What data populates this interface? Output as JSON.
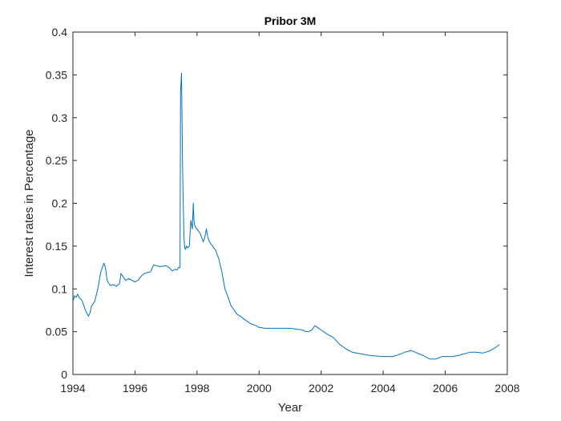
{
  "chart_data": {
    "type": "line",
    "title": "Pribor 3M",
    "xlabel": "Year",
    "ylabel": "Interest rates in Percentage",
    "xlim": [
      1994,
      2008
    ],
    "ylim": [
      0,
      0.4
    ],
    "x_ticks": [
      "1994",
      "1996",
      "1998",
      "2000",
      "2002",
      "2004",
      "2006",
      "2008"
    ],
    "y_ticks": [
      "0",
      "0.05",
      "0.1",
      "0.15",
      "0.2",
      "0.25",
      "0.3",
      "0.35",
      "0.4"
    ],
    "grid": false,
    "legend": "none",
    "line_color": "#0072BD",
    "series": [
      {
        "x": [
          1994.0,
          1994.05,
          1994.1,
          1994.15,
          1994.2,
          1994.3,
          1994.4,
          1994.5,
          1994.55,
          1994.6,
          1994.7,
          1994.8,
          1994.9,
          1995.0,
          1995.05,
          1995.1,
          1995.2,
          1995.3,
          1995.4,
          1995.5,
          1995.55,
          1995.6,
          1995.7,
          1995.8,
          1996.0,
          1996.1,
          1996.2,
          1996.3,
          1996.5,
          1996.6,
          1996.8,
          1997.0,
          1997.1,
          1997.2,
          1997.3,
          1997.35,
          1997.4,
          1997.45,
          1997.47,
          1997.5,
          1997.53,
          1997.55,
          1997.58,
          1997.6,
          1997.63,
          1997.66,
          1997.7,
          1997.75,
          1997.8,
          1997.85,
          1997.88,
          1997.9,
          1997.92,
          1997.95,
          1998.0,
          1998.1,
          1998.2,
          1998.25,
          1998.3,
          1998.35,
          1998.4,
          1998.5,
          1998.6,
          1998.7,
          1998.8,
          1998.9,
          1999.0,
          1999.1,
          1999.2,
          1999.3,
          1999.4,
          1999.5,
          1999.7,
          1999.9,
          2000.0,
          2000.2,
          2000.5,
          2000.8,
          2001.0,
          2001.2,
          2001.4,
          2001.5,
          2001.6,
          2001.7,
          2001.8,
          2002.0,
          2002.2,
          2002.4,
          2002.6,
          2002.8,
          2003.0,
          2003.3,
          2003.6,
          2004.0,
          2004.3,
          2004.5,
          2004.7,
          2004.9,
          2005.1,
          2005.3,
          2005.5,
          2005.7,
          2005.9,
          2006.0,
          2006.2,
          2006.4,
          2006.6,
          2006.8,
          2007.0,
          2007.2,
          2007.4,
          2007.6,
          2007.75
        ],
        "y": [
          0.085,
          0.092,
          0.09,
          0.094,
          0.09,
          0.086,
          0.075,
          0.068,
          0.072,
          0.08,
          0.085,
          0.1,
          0.12,
          0.13,
          0.125,
          0.11,
          0.104,
          0.105,
          0.103,
          0.106,
          0.118,
          0.115,
          0.11,
          0.112,
          0.108,
          0.11,
          0.115,
          0.118,
          0.12,
          0.128,
          0.126,
          0.127,
          0.125,
          0.121,
          0.123,
          0.122,
          0.125,
          0.125,
          0.33,
          0.352,
          0.25,
          0.21,
          0.16,
          0.148,
          0.146,
          0.15,
          0.148,
          0.15,
          0.18,
          0.17,
          0.2,
          0.18,
          0.175,
          0.172,
          0.17,
          0.165,
          0.155,
          0.16,
          0.17,
          0.16,
          0.155,
          0.15,
          0.145,
          0.135,
          0.12,
          0.1,
          0.09,
          0.08,
          0.075,
          0.07,
          0.068,
          0.065,
          0.06,
          0.057,
          0.055,
          0.054,
          0.054,
          0.054,
          0.054,
          0.053,
          0.052,
          0.05,
          0.05,
          0.052,
          0.057,
          0.052,
          0.047,
          0.043,
          0.035,
          0.03,
          0.026,
          0.024,
          0.022,
          0.021,
          0.021,
          0.023,
          0.026,
          0.028,
          0.025,
          0.022,
          0.018,
          0.018,
          0.021,
          0.021,
          0.021,
          0.022,
          0.024,
          0.026,
          0.026,
          0.025,
          0.027,
          0.031,
          0.035
        ]
      }
    ]
  }
}
